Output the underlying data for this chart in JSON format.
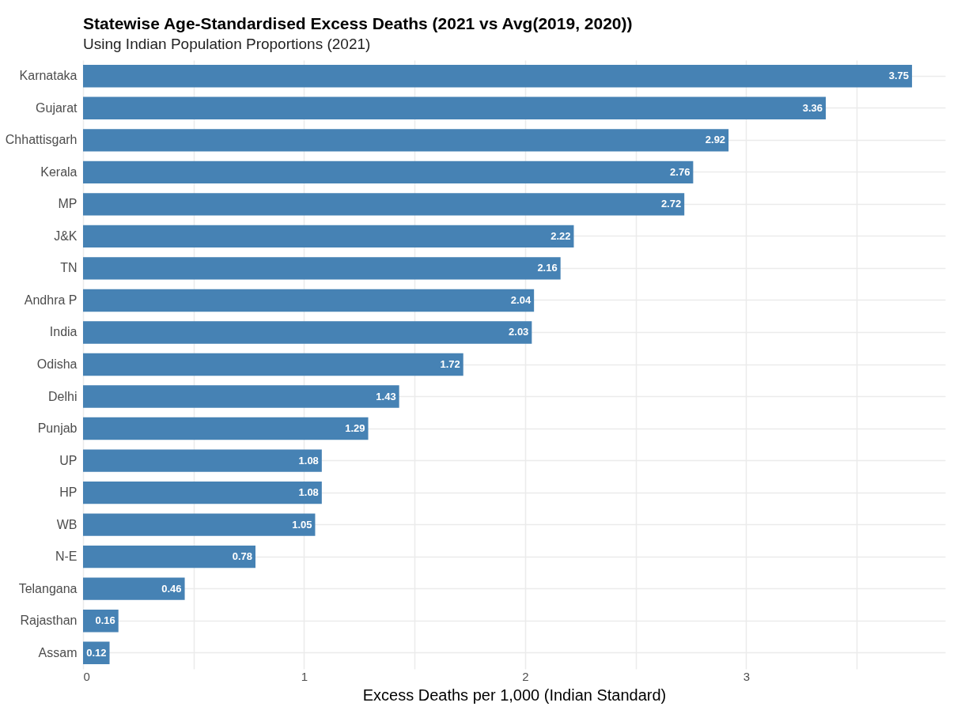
{
  "chart_data": {
    "type": "bar",
    "orientation": "horizontal",
    "title": "Statewise Age-Standardised Excess Deaths (2021 vs Avg(2019, 2020))",
    "subtitle": "Using Indian Population Proportions (2021)",
    "xlabel": "Excess Deaths per 1,000 (Indian Standard)",
    "categories": [
      "Karnataka",
      "Gujarat",
      "Chhattisgarh",
      "Kerala",
      "MP",
      "J&K",
      "TN",
      "Andhra P",
      "India",
      "Odisha",
      "Delhi",
      "Punjab",
      "UP",
      "HP",
      "WB",
      "N-E",
      "Telangana",
      "Rajasthan",
      "Assam"
    ],
    "values": [
      3.75,
      3.36,
      2.92,
      2.76,
      2.72,
      2.22,
      2.16,
      2.04,
      2.03,
      1.72,
      1.43,
      1.29,
      1.08,
      1.08,
      1.05,
      0.78,
      0.46,
      0.16,
      0.12
    ],
    "color": "#4682b4",
    "xlim": [
      0,
      3.9
    ],
    "xticks": [
      0,
      {
        "value": 0.5,
        "label": null
      },
      1,
      {
        "value": 1.5,
        "label": null
      },
      2,
      {
        "value": 2.5,
        "label": null
      },
      3,
      {
        "value": 3.5,
        "label": null
      }
    ],
    "grid": true,
    "data_labels": true
  }
}
